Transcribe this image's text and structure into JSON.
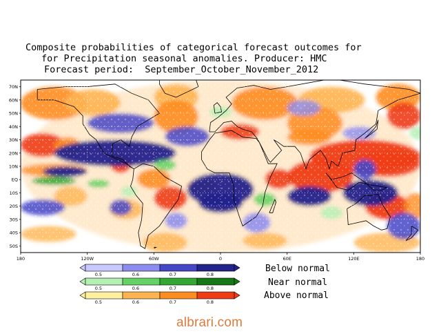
{
  "title": {
    "line1": "Composite probabilities of categorical forecast outcomes for",
    "line2": "for Precipitation seasonal anomalies. Producer: HMC",
    "line3": "Forecast period:  September_October_November_2012"
  },
  "map": {
    "lat_labels": [
      "70N",
      "60N",
      "50N",
      "40N",
      "30N",
      "20N",
      "10N",
      "EQ",
      "10S",
      "20S",
      "30S",
      "40S",
      "50S"
    ],
    "lon_labels": [
      "180",
      "120W",
      "60W",
      "0",
      "60E",
      "120E",
      "180"
    ]
  },
  "legend": {
    "categories": [
      {
        "label": "Below normal",
        "colors": [
          "#c9c9ff",
          "#8c8cf0",
          "#4646c8",
          "#23238c"
        ],
        "ticks": [
          "0.5",
          "0.6",
          "0.7",
          "0.8"
        ]
      },
      {
        "label": "Near normal",
        "colors": [
          "#b4f0b4",
          "#64d264",
          "#32a832",
          "#147814"
        ],
        "ticks": [
          "0.5",
          "0.6",
          "0.7",
          "0.8"
        ]
      },
      {
        "label": "Above normal",
        "colors": [
          "#fff0a0",
          "#ffb450",
          "#ff8c1e",
          "#f03c14"
        ],
        "ticks": [
          "0.5",
          "0.6",
          "0.7",
          "0.8"
        ]
      }
    ]
  },
  "watermark": "albrari.com"
}
